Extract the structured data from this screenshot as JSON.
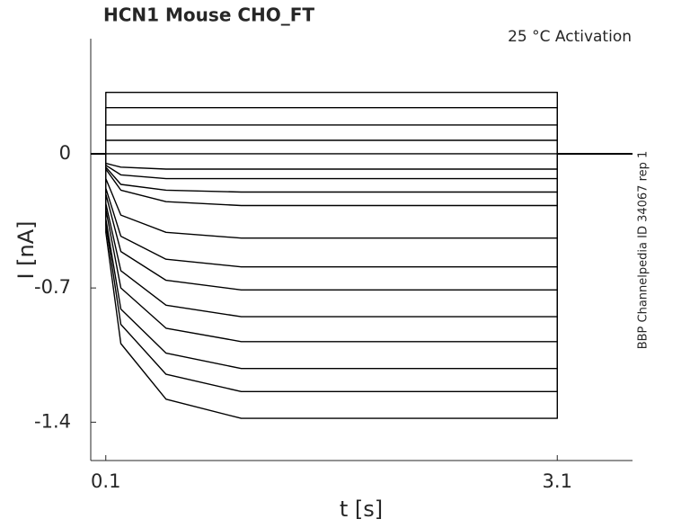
{
  "chart_data": {
    "type": "line",
    "title": "HCN1  Mouse  CHO_FT",
    "annotation": "25 °C  Activation",
    "side_note": "BBP Channelpedia ID 34067 rep 1",
    "xlabel": "t [s]",
    "ylabel": "I [nA]",
    "xlim": [
      0,
      3.6
    ],
    "ylim": [
      -1.6,
      0.6
    ],
    "xticks": [
      0.1,
      3.1
    ],
    "yticks": [
      -1.4,
      -0.7,
      0
    ],
    "color": "#000000",
    "series": [
      {
        "x": [
          0,
          0.1,
          0.1,
          0.2,
          0.5,
          1.0,
          3.1,
          3.1,
          3.6
        ],
        "values": [
          0,
          0,
          0.32,
          0.32,
          0.32,
          0.32,
          0.32,
          0,
          0
        ]
      },
      {
        "x": [
          0,
          0.1,
          0.1,
          0.2,
          0.5,
          1.0,
          3.1,
          3.1,
          3.6
        ],
        "values": [
          0,
          0,
          0.24,
          0.24,
          0.24,
          0.24,
          0.24,
          0,
          0
        ]
      },
      {
        "x": [
          0,
          0.1,
          0.1,
          0.2,
          0.5,
          1.0,
          3.1,
          3.1,
          3.6
        ],
        "values": [
          0,
          0,
          0.15,
          0.15,
          0.15,
          0.15,
          0.15,
          0,
          0
        ]
      },
      {
        "x": [
          0,
          0.1,
          0.1,
          0.2,
          0.5,
          1.0,
          3.1,
          3.1,
          3.6
        ],
        "values": [
          0,
          0,
          0.07,
          0.07,
          0.07,
          0.07,
          0.07,
          0,
          0
        ]
      },
      {
        "x": [
          0,
          0.1,
          0.1,
          0.2,
          0.5,
          1.0,
          3.1,
          3.1,
          3.6
        ],
        "values": [
          0,
          0,
          0,
          0,
          0,
          0,
          0,
          0,
          0
        ]
      },
      {
        "x": [
          0,
          0.1,
          0.1,
          0.2,
          0.5,
          1.0,
          3.1,
          3.1,
          3.6
        ],
        "values": [
          0,
          0,
          -0.05,
          -0.07,
          -0.08,
          -0.08,
          -0.08,
          0,
          0
        ]
      },
      {
        "x": [
          0,
          0.1,
          0.1,
          0.2,
          0.5,
          1.0,
          3.1,
          3.1,
          3.6
        ],
        "values": [
          0,
          0,
          -0.06,
          -0.11,
          -0.13,
          -0.13,
          -0.13,
          0,
          0
        ]
      },
      {
        "x": [
          0,
          0.1,
          0.1,
          0.2,
          0.5,
          1.0,
          3.1,
          3.1,
          3.6
        ],
        "values": [
          0,
          0,
          -0.07,
          -0.16,
          -0.19,
          -0.2,
          -0.2,
          0,
          0
        ]
      },
      {
        "x": [
          0,
          0.1,
          0.1,
          0.2,
          0.5,
          1.0,
          3.1,
          3.1,
          3.6
        ],
        "values": [
          0,
          0,
          -0.08,
          -0.19,
          -0.25,
          -0.27,
          -0.27,
          0,
          0
        ]
      },
      {
        "x": [
          0,
          0.1,
          0.1,
          0.2,
          0.5,
          1.0,
          3.1,
          3.1,
          3.6
        ],
        "values": [
          0,
          0,
          -0.13,
          -0.32,
          -0.41,
          -0.44,
          -0.44,
          0,
          0
        ]
      },
      {
        "x": [
          0,
          0.1,
          0.1,
          0.2,
          0.5,
          1.0,
          3.1,
          3.1,
          3.6
        ],
        "values": [
          0,
          0,
          -0.18,
          -0.43,
          -0.55,
          -0.59,
          -0.59,
          0,
          0
        ]
      },
      {
        "x": [
          0,
          0.1,
          0.1,
          0.2,
          0.5,
          1.0,
          3.1,
          3.1,
          3.6
        ],
        "values": [
          0,
          0,
          -0.21,
          -0.51,
          -0.66,
          -0.71,
          -0.71,
          0,
          0
        ]
      },
      {
        "x": [
          0,
          0.1,
          0.1,
          0.2,
          0.5,
          1.0,
          3.1,
          3.1,
          3.6
        ],
        "values": [
          0,
          0,
          -0.26,
          -0.61,
          -0.79,
          -0.85,
          -0.85,
          0,
          0
        ]
      },
      {
        "x": [
          0,
          0.1,
          0.1,
          0.2,
          0.5,
          1.0,
          3.1,
          3.1,
          3.6
        ],
        "values": [
          0,
          0,
          -0.29,
          -0.7,
          -0.91,
          -0.98,
          -0.98,
          0,
          0
        ]
      },
      {
        "x": [
          0,
          0.1,
          0.1,
          0.2,
          0.5,
          1.0,
          3.1,
          3.1,
          3.6
        ],
        "values": [
          0,
          0,
          -0.34,
          -0.81,
          -1.04,
          -1.12,
          -1.12,
          0,
          0
        ]
      },
      {
        "x": [
          0,
          0.1,
          0.1,
          0.2,
          0.5,
          1.0,
          3.1,
          3.1,
          3.6
        ],
        "values": [
          0,
          0,
          -0.37,
          -0.89,
          -1.15,
          -1.24,
          -1.24,
          0,
          0
        ]
      },
      {
        "x": [
          0,
          0.1,
          0.1,
          0.2,
          0.5,
          1.0,
          3.1,
          3.1,
          3.6
        ],
        "values": [
          0,
          0,
          -0.41,
          -0.99,
          -1.28,
          -1.38,
          -1.38,
          0,
          0
        ]
      }
    ]
  }
}
